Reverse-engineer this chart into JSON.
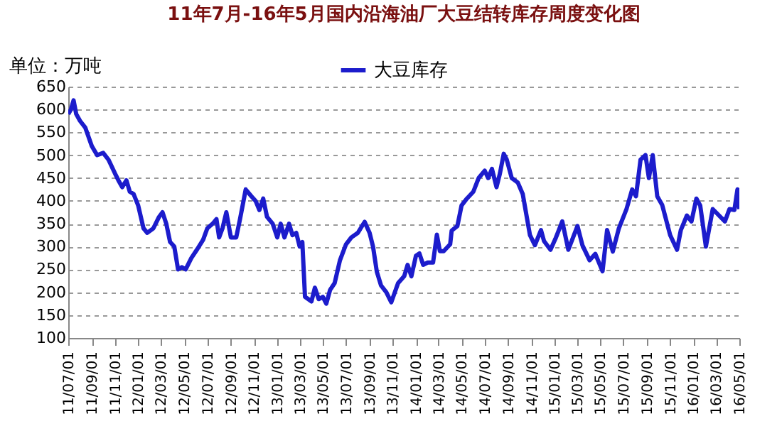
{
  "chart_data": {
    "type": "line",
    "title": "11年7月-16年5月国内沿海油厂大豆结转库存周度变化图",
    "ylabel": "单位：万吨",
    "x": [
      "2011-07-01",
      "2011-07-08",
      "2011-07-15",
      "2011-07-22",
      "2011-08-01",
      "2011-08-15",
      "2011-09-01",
      "2011-09-15",
      "2011-10-01",
      "2011-10-15",
      "2011-11-01",
      "2011-11-10",
      "2011-11-20",
      "2011-12-01",
      "2011-12-10",
      "2011-12-20",
      "2012-01-01",
      "2012-01-15",
      "2012-01-25",
      "2012-02-10",
      "2012-02-25",
      "2012-03-05",
      "2012-03-15",
      "2012-03-25",
      "2012-04-05",
      "2012-04-15",
      "2012-04-25",
      "2012-05-05",
      "2012-05-20",
      "2012-06-05",
      "2012-06-20",
      "2012-07-01",
      "2012-07-15",
      "2012-07-25",
      "2012-08-01",
      "2012-08-10",
      "2012-08-20",
      "2012-09-01",
      "2012-09-15",
      "2012-09-25",
      "2012-10-10",
      "2012-10-25",
      "2012-11-05",
      "2012-11-15",
      "2012-11-25",
      "2012-12-05",
      "2012-12-20",
      "2013-01-01",
      "2013-01-10",
      "2013-01-20",
      "2013-02-01",
      "2013-02-10",
      "2013-02-20",
      "2013-03-01",
      "2013-03-08",
      "2013-03-15",
      "2013-04-01",
      "2013-04-10",
      "2013-04-20",
      "2013-05-01",
      "2013-05-10",
      "2013-05-20",
      "2013-06-01",
      "2013-06-15",
      "2013-07-01",
      "2013-07-15",
      "2013-08-01",
      "2013-08-19",
      "2013-09-01",
      "2013-09-10",
      "2013-09-20",
      "2013-10-01",
      "2013-10-15",
      "2013-10-28",
      "2013-11-15",
      "2013-12-01",
      "2013-12-10",
      "2013-12-20",
      "2014-01-01",
      "2014-01-10",
      "2014-01-20",
      "2014-02-01",
      "2014-02-15",
      "2014-02-25",
      "2014-03-05",
      "2014-03-15",
      "2014-04-01",
      "2014-04-05",
      "2014-04-20",
      "2014-05-01",
      "2014-05-15",
      "2014-06-01",
      "2014-06-15",
      "2014-07-01",
      "2014-07-10",
      "2014-07-20",
      "2014-08-01",
      "2014-08-10",
      "2014-08-20",
      "2014-08-28",
      "2014-09-10",
      "2014-09-26",
      "2014-10-09",
      "2014-10-28",
      "2014-11-10",
      "2014-11-26",
      "2014-12-04",
      "2014-12-21",
      "2015-01-03",
      "2015-01-21",
      "2015-02-06",
      "2015-03-02",
      "2015-03-15",
      "2015-04-03",
      "2015-04-18",
      "2015-05-07",
      "2015-05-19",
      "2015-06-03",
      "2015-06-19",
      "2015-07-09",
      "2015-07-24",
      "2015-08-03",
      "2015-08-15",
      "2015-08-28",
      "2015-09-06",
      "2015-09-16",
      "2015-09-28",
      "2015-10-11",
      "2015-11-01",
      "2015-11-19",
      "2015-11-29",
      "2015-12-15",
      "2015-12-27",
      "2016-01-09",
      "2016-01-19",
      "2016-02-03",
      "2016-02-21",
      "2016-03-24",
      "2016-04-05",
      "2016-04-18",
      "2016-04-26",
      "2016-05-01"
    ],
    "series": [
      {
        "name": "大豆库存",
        "color": "#1c1ccc",
        "values": [
          590,
          600,
          620,
          590,
          575,
          560,
          520,
          500,
          505,
          490,
          460,
          445,
          430,
          445,
          420,
          415,
          390,
          340,
          330,
          340,
          365,
          375,
          350,
          310,
          300,
          250,
          255,
          250,
          275,
          295,
          315,
          340,
          350,
          360,
          320,
          340,
          375,
          320,
          320,
          360,
          425,
          410,
          400,
          380,
          405,
          365,
          350,
          320,
          350,
          320,
          350,
          325,
          330,
          300,
          310,
          190,
          180,
          210,
          185,
          190,
          175,
          205,
          220,
          270,
          305,
          320,
          330,
          354,
          330,
          300,
          245,
          215,
          200,
          178,
          220,
          235,
          260,
          235,
          280,
          285,
          260,
          265,
          265,
          326,
          290,
          290,
          305,
          335,
          345,
          390,
          405,
          420,
          450,
          466,
          450,
          470,
          430,
          460,
          503,
          490,
          450,
          440,
          415,
          325,
          303,
          336,
          312,
          293,
          317,
          355,
          293,
          345,
          303,
          270,
          284,
          246,
          336,
          289,
          340,
          382,
          425,
          410,
          490,
          500,
          450,
          500,
          410,
          391,
          325,
          293,
          336,
          368,
          355,
          405,
          390,
          300,
          382,
          355,
          382,
          380,
          425,
          382
        ]
      }
    ],
    "xlim": [
      "2011-07-01",
      "2016-05-01"
    ],
    "xticks": [
      {
        "value": "2011-07-01",
        "label": "11/07/01"
      },
      {
        "value": "2011-09-01",
        "label": "11/09/01"
      },
      {
        "value": "2011-11-01",
        "label": "11/11/01"
      },
      {
        "value": "2012-01-01",
        "label": "12/01/01"
      },
      {
        "value": "2012-03-01",
        "label": "12/03/01"
      },
      {
        "value": "2012-05-01",
        "label": "12/05/01"
      },
      {
        "value": "2012-07-01",
        "label": "12/07/01"
      },
      {
        "value": "2012-09-01",
        "label": "12/09/01"
      },
      {
        "value": "2012-11-01",
        "label": "12/11/01"
      },
      {
        "value": "2013-01-01",
        "label": "13/01/01"
      },
      {
        "value": "2013-03-01",
        "label": "13/03/01"
      },
      {
        "value": "2013-05-01",
        "label": "13/05/01"
      },
      {
        "value": "2013-07-01",
        "label": "13/07/01"
      },
      {
        "value": "2013-09-01",
        "label": "13/09/01"
      },
      {
        "value": "2013-11-01",
        "label": "13/11/01"
      },
      {
        "value": "2014-01-01",
        "label": "14/01/01"
      },
      {
        "value": "2014-03-01",
        "label": "14/03/01"
      },
      {
        "value": "2014-05-01",
        "label": "14/05/01"
      },
      {
        "value": "2014-07-01",
        "label": "14/07/01"
      },
      {
        "value": "2014-09-01",
        "label": "14/09/01"
      },
      {
        "value": "2014-11-01",
        "label": "14/11/01"
      },
      {
        "value": "2015-01-01",
        "label": "15/01/01"
      },
      {
        "value": "2015-03-01",
        "label": "15/03/01"
      },
      {
        "value": "2015-05-01",
        "label": "15/05/01"
      },
      {
        "value": "2015-07-01",
        "label": "15/07/01"
      },
      {
        "value": "2015-09-01",
        "label": "15/09/01"
      },
      {
        "value": "2015-11-01",
        "label": "15/11/01"
      },
      {
        "value": "2016-01-01",
        "label": "16/01/01"
      },
      {
        "value": "2016-03-01",
        "label": "16/03/01"
      },
      {
        "value": "2016-05-01",
        "label": "16/05/01"
      }
    ],
    "ylim": [
      100,
      650
    ],
    "yticks": [
      100,
      150,
      200,
      250,
      300,
      350,
      400,
      450,
      500,
      550,
      600,
      650
    ],
    "grid": "y",
    "legend": "top",
    "marker": "none",
    "line_style": "solid"
  }
}
